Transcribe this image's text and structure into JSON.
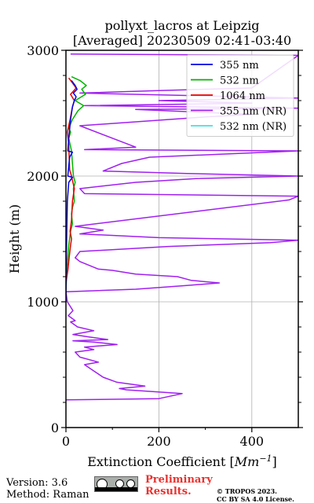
{
  "chart_data": {
    "type": "line",
    "title": "pollyxt_lacros at Leipzig",
    "subtitle": "[Averaged] 20230509 02:41-03:40",
    "xlabel": "Extinction Coefficient [Mm⁻¹]",
    "xlabel_main": "Extinction Coefficient [",
    "xlabel_unit": "Mm",
    "xlabel_exp": "−1",
    "xlabel_close": "]",
    "ylabel": "Height (m)",
    "xlim": [
      0,
      500
    ],
    "ylim": [
      0,
      3000
    ],
    "x_ticks": [
      "0",
      "200",
      "400"
    ],
    "y_ticks": [
      "0",
      "1000",
      "2000",
      "3000"
    ],
    "grid": true,
    "legend_position": "top-right",
    "series": [
      {
        "name": "355 nm",
        "color": "#0000e6",
        "points": [
          [
            0,
            1000
          ],
          [
            1,
            1400
          ],
          [
            3,
            1800
          ],
          [
            6,
            1950
          ],
          [
            14,
            1990
          ],
          [
            4,
            2000
          ],
          [
            8,
            2150
          ],
          [
            14,
            2190
          ],
          [
            4,
            2200
          ],
          [
            6,
            2300
          ],
          [
            10,
            2450
          ],
          [
            14,
            2550
          ],
          [
            18,
            2600
          ],
          [
            22,
            2630
          ],
          [
            16,
            2660
          ],
          [
            24,
            2690
          ],
          [
            20,
            2720
          ],
          [
            12,
            2760
          ]
        ]
      },
      {
        "name": "532 nm",
        "color": "#00b400",
        "points": [
          [
            0,
            1100
          ],
          [
            3,
            1300
          ],
          [
            6,
            1450
          ],
          [
            10,
            1560
          ],
          [
            14,
            1620
          ],
          [
            12,
            1700
          ],
          [
            14,
            1750
          ],
          [
            18,
            1800
          ],
          [
            16,
            1900
          ],
          [
            20,
            1950
          ],
          [
            16,
            2000
          ],
          [
            12,
            2200
          ],
          [
            6,
            2300
          ],
          [
            10,
            2350
          ],
          [
            6,
            2380
          ],
          [
            14,
            2450
          ],
          [
            26,
            2520
          ],
          [
            38,
            2560
          ],
          [
            20,
            2600
          ],
          [
            42,
            2650
          ],
          [
            34,
            2690
          ],
          [
            44,
            2720
          ],
          [
            30,
            2760
          ],
          [
            12,
            2790
          ]
        ]
      },
      {
        "name": "1064 nm",
        "color": "#e60000",
        "points": [
          [
            0,
            1150
          ],
          [
            4,
            1250
          ],
          [
            7,
            1350
          ],
          [
            10,
            1450
          ],
          [
            12,
            1500
          ],
          [
            9,
            1560
          ],
          [
            12,
            1650
          ],
          [
            14,
            1800
          ],
          [
            18,
            1900
          ],
          [
            12,
            2000
          ],
          [
            8,
            2050
          ],
          [
            6,
            2250
          ],
          [
            3,
            2350
          ],
          [
            9,
            2450
          ],
          [
            14,
            2550
          ],
          [
            18,
            2600
          ],
          [
            10,
            2650
          ],
          [
            22,
            2700
          ],
          [
            14,
            2740
          ],
          [
            6,
            2780
          ]
        ]
      },
      {
        "name": "355 nm (NR)",
        "color": "#a020f0",
        "points": [
          [
            0,
            220
          ],
          [
            200,
            230
          ],
          [
            250,
            270
          ],
          [
            130,
            300
          ],
          [
            115,
            310
          ],
          [
            170,
            330
          ],
          [
            110,
            360
          ],
          [
            80,
            400
          ],
          [
            60,
            450
          ],
          [
            40,
            500
          ],
          [
            70,
            520
          ],
          [
            30,
            560
          ],
          [
            20,
            600
          ],
          [
            60,
            620
          ],
          [
            40,
            640
          ],
          [
            110,
            660
          ],
          [
            60,
            680
          ],
          [
            15,
            690
          ],
          [
            90,
            700
          ],
          [
            50,
            720
          ],
          [
            15,
            740
          ],
          [
            60,
            770
          ],
          [
            25,
            800
          ],
          [
            10,
            840
          ],
          [
            20,
            850
          ],
          [
            5,
            890
          ],
          [
            15,
            930
          ],
          [
            3,
            1000
          ],
          [
            0,
            1080
          ],
          [
            150,
            1100
          ],
          [
            260,
            1130
          ],
          [
            330,
            1150
          ],
          [
            270,
            1170
          ],
          [
            240,
            1200
          ],
          [
            150,
            1220
          ],
          [
            100,
            1250
          ],
          [
            70,
            1260
          ],
          [
            30,
            1320
          ],
          [
            20,
            1350
          ],
          [
            30,
            1400
          ],
          [
            220,
            1440
          ],
          [
            440,
            1470
          ],
          [
            500,
            1490
          ],
          [
            200,
            1510
          ],
          [
            30,
            1540
          ],
          [
            80,
            1570
          ],
          [
            20,
            1600
          ],
          [
            480,
            1810
          ],
          [
            500,
            1840
          ],
          [
            40,
            1860
          ],
          [
            30,
            1900
          ],
          [
            150,
            1950
          ],
          [
            280,
            1980
          ],
          [
            500,
            2000
          ],
          [
            260,
            2020
          ],
          [
            80,
            2040
          ],
          [
            120,
            2100
          ],
          [
            180,
            2150
          ],
          [
            500,
            2200
          ],
          [
            40,
            2210
          ],
          [
            150,
            2230
          ],
          [
            30,
            2400
          ],
          [
            300,
            2470
          ],
          [
            400,
            2490
          ],
          [
            150,
            2530
          ],
          [
            500,
            2540
          ],
          [
            40,
            2560
          ],
          [
            400,
            2580
          ],
          [
            200,
            2600
          ],
          [
            500,
            2620
          ],
          [
            30,
            2660
          ],
          [
            200,
            2680
          ],
          [
            400,
            2700
          ],
          [
            500,
            2960
          ],
          [
            10,
            2970
          ]
        ]
      },
      {
        "name": "532 nm (NR)",
        "color": "#40e0e0",
        "points": []
      }
    ]
  },
  "footer": {
    "version": "Version: 3.6",
    "method": "Method: Raman",
    "preliminary_line1": "Preliminary",
    "preliminary_line2": "Results.",
    "copyright_line1": "© TROPOS 2023.",
    "copyright_line2": "CC BY SA 4.0 License."
  },
  "license_icon": "cc-by-sa-badge"
}
